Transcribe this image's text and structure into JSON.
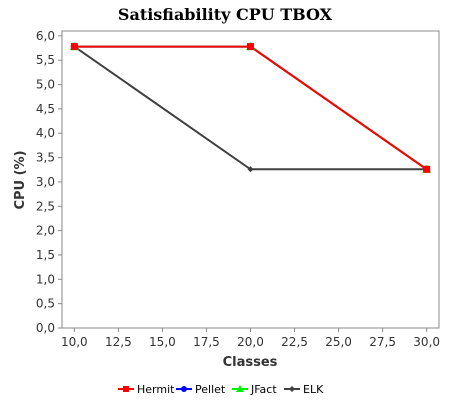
{
  "chart_data": {
    "type": "line",
    "title": "Satisfiability CPU TBOX",
    "xlabel": "Classes",
    "ylabel": "CPU (%)",
    "xlim": [
      9.3,
      30.7
    ],
    "ylim": [
      0,
      6.1
    ],
    "x_ticks": [
      "10,0",
      "12,5",
      "15,0",
      "17,5",
      "20,0",
      "22,5",
      "25,0",
      "27,5",
      "30,0"
    ],
    "x_tick_values": [
      10,
      12.5,
      15,
      17.5,
      20,
      22.5,
      25,
      27.5,
      30
    ],
    "y_ticks": [
      "0,0",
      "0,5",
      "1,0",
      "1,5",
      "2,0",
      "2,5",
      "3,0",
      "3,5",
      "4,0",
      "4,5",
      "5,0",
      "5,5",
      "6,0"
    ],
    "y_tick_values": [
      0,
      0.5,
      1,
      1.5,
      2,
      2.5,
      3,
      3.5,
      4,
      4.5,
      5,
      5.5,
      6
    ],
    "grid": false,
    "legend_position": "bottom",
    "series": [
      {
        "name": "Hermit",
        "color": "#ff0000",
        "marker": "square",
        "x": [
          10,
          20,
          30
        ],
        "values": [
          5.78,
          5.78,
          3.26
        ]
      },
      {
        "name": "Pellet",
        "color": "#0000ff",
        "marker": "circle",
        "x": [
          10,
          20,
          30
        ],
        "values": [
          5.78,
          5.78,
          3.26
        ]
      },
      {
        "name": "JFact",
        "color": "#00ee00",
        "marker": "triangle",
        "x": [
          10,
          20,
          30
        ],
        "values": [
          5.78,
          5.78,
          3.26
        ]
      },
      {
        "name": "ELK",
        "color": "#404040",
        "marker": "diamond",
        "x": [
          10,
          20,
          30
        ],
        "values": [
          5.78,
          3.26,
          3.26
        ]
      }
    ]
  }
}
